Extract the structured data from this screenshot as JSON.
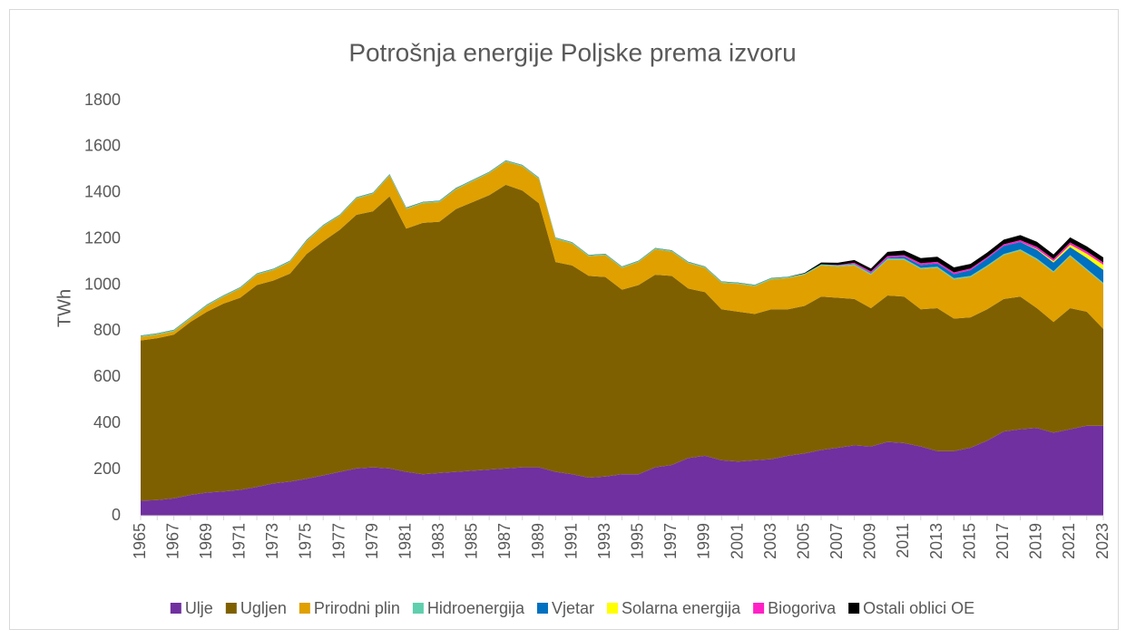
{
  "chart_data": {
    "type": "stacked_area",
    "title": "Potrošnja energije Poljske prema izvoru",
    "y_label": "TWh",
    "categories": [
      "1965",
      null,
      "1967",
      null,
      "1969",
      null,
      "1971",
      null,
      "1973",
      null,
      "1975",
      null,
      "1977",
      null,
      "1979",
      null,
      "1981",
      null,
      "1983",
      null,
      "1985",
      null,
      "1987",
      null,
      "1989",
      null,
      "1991",
      null,
      "1993",
      null,
      "1995",
      null,
      "1997",
      null,
      "1999",
      null,
      "2001",
      null,
      "2003",
      null,
      "2005",
      null,
      "2007",
      null,
      "2009",
      null,
      "2011",
      null,
      "2013",
      null,
      "2015",
      null,
      "2017",
      null,
      "2019",
      null,
      "2021",
      null,
      "2023"
    ],
    "ylim": [
      0,
      1800
    ],
    "yticks": [
      0,
      200,
      400,
      600,
      800,
      1000,
      1200,
      1400,
      1600,
      1800
    ],
    "grid": false,
    "legend": "bottom",
    "series": [
      {
        "name": "Ulje",
        "color": "#7030a0",
        "values": [
          65,
          68,
          75,
          90,
          100,
          105,
          112,
          125,
          140,
          148,
          160,
          175,
          190,
          205,
          210,
          205,
          190,
          180,
          185,
          190,
          195,
          200,
          205,
          210,
          210,
          190,
          180,
          165,
          170,
          180,
          180,
          210,
          220,
          250,
          260,
          240,
          235,
          240,
          245,
          260,
          270,
          285,
          295,
          305,
          300,
          320,
          315,
          300,
          280,
          280,
          295,
          325,
          365,
          375,
          380,
          360,
          375,
          390,
          390
        ]
      },
      {
        "name": "Ugljen",
        "color": "#7f6000",
        "values": [
          695,
          702,
          710,
          750,
          785,
          815,
          833,
          875,
          880,
          902,
          975,
          1015,
          1050,
          1100,
          1110,
          1180,
          1055,
          1090,
          1090,
          1140,
          1165,
          1190,
          1230,
          1200,
          1145,
          910,
          905,
          875,
          865,
          800,
          820,
          835,
          820,
          735,
          710,
          655,
          650,
          635,
          650,
          635,
          640,
          665,
          650,
          635,
          600,
          635,
          635,
          595,
          620,
          575,
          565,
          570,
          575,
          575,
          520,
          480,
          525,
          495,
          420
        ]
      },
      {
        "name": "Prirodni plin",
        "color": "#dfa000",
        "values": [
          15,
          15,
          15,
          15,
          25,
          30,
          40,
          45,
          45,
          50,
          55,
          65,
          60,
          70,
          75,
          90,
          85,
          85,
          85,
          85,
          90,
          95,
          100,
          105,
          105,
          100,
          95,
          85,
          95,
          95,
          100,
          110,
          105,
          110,
          105,
          115,
          120,
          120,
          130,
          135,
          135,
          135,
          135,
          145,
          145,
          155,
          160,
          175,
          175,
          170,
          175,
          185,
          190,
          200,
          210,
          215,
          225,
          180,
          195
        ]
      },
      {
        "name": "Hidroenergija",
        "color": "#5fcfae",
        "values": [
          5,
          5,
          5,
          5,
          5,
          5,
          5,
          5,
          5,
          5,
          5,
          5,
          5,
          5,
          5,
          5,
          5,
          5,
          5,
          5,
          5,
          5,
          5,
          5,
          5,
          5,
          5,
          5,
          5,
          5,
          5,
          5,
          5,
          5,
          5,
          5,
          5,
          5,
          5,
          5,
          5,
          5,
          5,
          5,
          5,
          5,
          5,
          5,
          5,
          5,
          5,
          5,
          5,
          5,
          5,
          5,
          5,
          5,
          5
        ]
      },
      {
        "name": "Vjetar",
        "color": "#0070c0",
        "values": [
          0,
          0,
          0,
          0,
          0,
          0,
          0,
          0,
          0,
          0,
          0,
          0,
          0,
          0,
          0,
          0,
          0,
          0,
          0,
          0,
          0,
          0,
          0,
          0,
          0,
          0,
          0,
          0,
          0,
          0,
          0,
          0,
          0,
          0,
          0,
          0,
          0,
          0,
          0,
          0,
          0,
          0,
          0,
          2,
          3,
          4,
          8,
          12,
          14,
          18,
          25,
          30,
          35,
          32,
          38,
          38,
          35,
          48,
          56
        ]
      },
      {
        "name": "Solarna energija",
        "color": "#ffff00",
        "values": [
          0,
          0,
          0,
          0,
          0,
          0,
          0,
          0,
          0,
          0,
          0,
          0,
          0,
          0,
          0,
          0,
          0,
          0,
          0,
          0,
          0,
          0,
          0,
          0,
          0,
          0,
          0,
          0,
          0,
          0,
          0,
          0,
          0,
          0,
          0,
          0,
          0,
          0,
          0,
          0,
          0,
          0,
          0,
          0,
          0,
          0,
          0,
          0,
          0,
          0,
          0,
          0,
          0,
          0,
          3,
          6,
          10,
          18,
          22
        ]
      },
      {
        "name": "Biogoriva",
        "color": "#ff21c6",
        "values": [
          0,
          0,
          0,
          0,
          0,
          0,
          0,
          0,
          0,
          0,
          0,
          0,
          0,
          0,
          0,
          0,
          0,
          0,
          0,
          0,
          0,
          0,
          0,
          0,
          0,
          0,
          0,
          0,
          0,
          0,
          0,
          0,
          0,
          0,
          0,
          0,
          0,
          0,
          0,
          0,
          0,
          0,
          2,
          5,
          6,
          7,
          7,
          8,
          7,
          7,
          7,
          6,
          7,
          8,
          10,
          9,
          10,
          10,
          10
        ]
      },
      {
        "name": "Ostali oblici OE",
        "color": "#000000",
        "values": [
          1,
          1,
          1,
          1,
          1,
          1,
          1,
          1,
          1,
          1,
          1,
          1,
          1,
          1,
          1,
          1,
          1,
          1,
          1,
          1,
          1,
          1,
          1,
          1,
          1,
          1,
          1,
          1,
          1,
          1,
          1,
          1,
          1,
          1,
          1,
          1,
          1,
          1,
          1,
          1,
          3,
          8,
          10,
          12,
          13,
          18,
          20,
          22,
          22,
          22,
          20,
          20,
          20,
          22,
          22,
          20,
          22,
          22,
          22
        ]
      }
    ]
  }
}
